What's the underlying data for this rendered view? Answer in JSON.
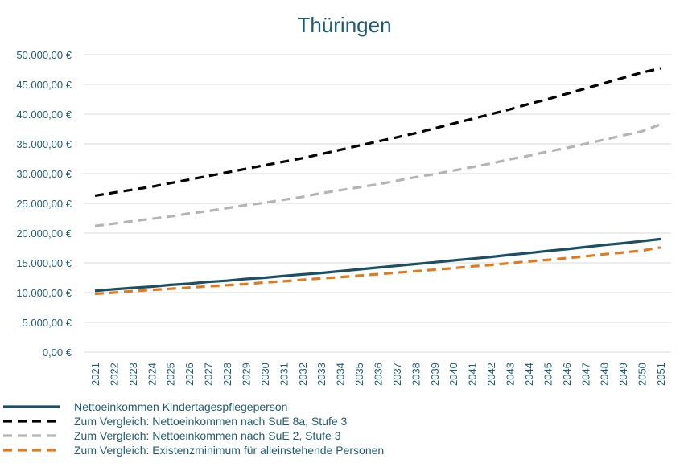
{
  "chart_data": {
    "type": "line",
    "title": "Thüringen",
    "xlabel": "",
    "ylabel": "",
    "ylim": [
      0,
      50000
    ],
    "y_ticks": [
      0,
      5000,
      10000,
      15000,
      20000,
      25000,
      30000,
      35000,
      40000,
      45000,
      50000
    ],
    "y_tick_labels": [
      "0,00 €",
      "5.000,00 €",
      "10.000,00 €",
      "15.000,00 €",
      "20.000,00 €",
      "25.000,00 €",
      "30.000,00 €",
      "35.000,00 €",
      "40.000,00 €",
      "45.000,00 €",
      "50.000,00 €"
    ],
    "grid": true,
    "legend_position": "bottom",
    "categories": [
      "2021",
      "2022",
      "2023",
      "2024",
      "2025",
      "2026",
      "2027",
      "2028",
      "2029",
      "2030",
      "2031",
      "2032",
      "2033",
      "2034",
      "2035",
      "2036",
      "2037",
      "2038",
      "2039",
      "2040",
      "2041",
      "2042",
      "2043",
      "2044",
      "2045",
      "2046",
      "2047",
      "2048",
      "2049",
      "2050",
      "2051"
    ],
    "series": [
      {
        "name": "Nettoeinkommen Kindertagespflegeperson",
        "color": "#1b4f63",
        "dash": "solid",
        "values": [
          10300,
          10550,
          10800,
          11000,
          11300,
          11500,
          11800,
          12000,
          12300,
          12500,
          12800,
          13050,
          13300,
          13600,
          13900,
          14200,
          14500,
          14800,
          15100,
          15400,
          15700,
          16000,
          16350,
          16650,
          17000,
          17300,
          17650,
          18000,
          18300,
          18650,
          19000
        ]
      },
      {
        "name": "Zum Vergleich: Nettoeinkommen nach SuE 8a, Stufe 3",
        "color": "#000000",
        "dash": "dashed",
        "values": [
          26300,
          26800,
          27300,
          27800,
          28400,
          29000,
          29600,
          30200,
          30800,
          31400,
          32000,
          32600,
          33300,
          34000,
          34700,
          35400,
          36100,
          36800,
          37600,
          38400,
          39200,
          40000,
          40800,
          41700,
          42500,
          43400,
          44300,
          45200,
          46100,
          47000,
          47700
        ]
      },
      {
        "name": "Zum Vergleich: Nettoeinkommen nach SuE 2, Stufe 3",
        "color": "#b4b4b4",
        "dash": "dashed",
        "values": [
          21200,
          21600,
          22000,
          22400,
          22800,
          23300,
          23700,
          24200,
          24700,
          25100,
          25600,
          26100,
          26700,
          27200,
          27700,
          28200,
          28800,
          29400,
          29900,
          30500,
          31100,
          31700,
          32400,
          33000,
          33700,
          34300,
          35000,
          35700,
          36400,
          37100,
          38300
        ]
      },
      {
        "name": "Zum Vergleich: Existenzminimum für alleinstehende Personen",
        "color": "#e07a1f",
        "dash": "dashed",
        "values": [
          9800,
          10000,
          10250,
          10450,
          10650,
          10850,
          11050,
          11250,
          11450,
          11700,
          11900,
          12150,
          12400,
          12600,
          12850,
          13100,
          13350,
          13600,
          13850,
          14100,
          14400,
          14650,
          14950,
          15250,
          15500,
          15800,
          16100,
          16450,
          16750,
          17050,
          17600
        ]
      }
    ]
  }
}
